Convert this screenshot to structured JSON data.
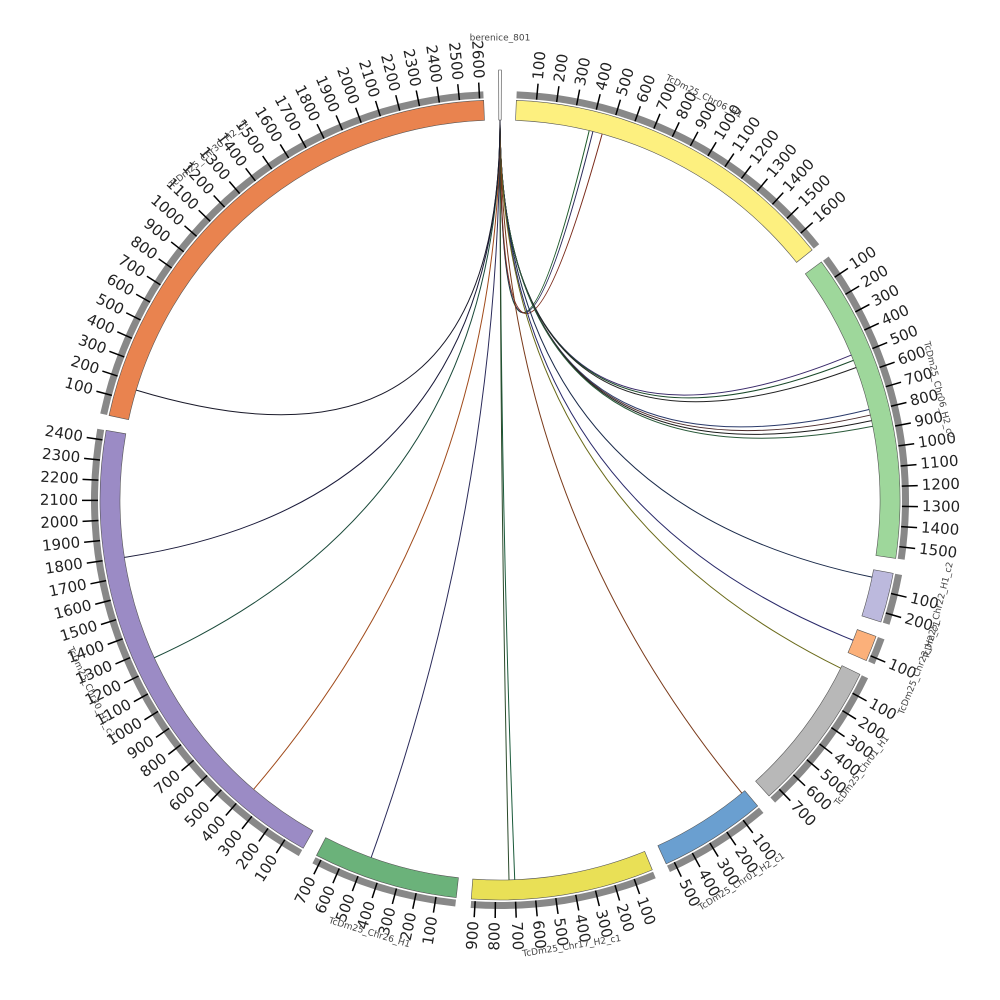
{
  "chart_data": {
    "type": "circos",
    "hub": {
      "name": "berenice_801"
    },
    "segments": [
      {
        "name": "TcDm25_Chr06_H1",
        "color": "#fdf07f",
        "length": 1700,
        "ticks": [
          100,
          200,
          300,
          400,
          500,
          600,
          700,
          800,
          900,
          1000,
          1100,
          1200,
          1300,
          1400,
          1500,
          1600
        ]
      },
      {
        "name": "TcDm25_Chr06_H2_c2",
        "color": "#9ed79b",
        "length": 1560,
        "ticks": [
          100,
          200,
          300,
          400,
          500,
          600,
          700,
          800,
          900,
          1000,
          1100,
          1200,
          1300,
          1400,
          1500
        ]
      },
      {
        "name": "TcDm25_Chr22_H1_c2",
        "color": "#bcb9dd",
        "length": 250,
        "ticks": [
          100,
          200
        ]
      },
      {
        "name": "TcDm25_Chr23_H2_c1",
        "color": "#fbb07a",
        "length": 130,
        "ticks": [
          100
        ]
      },
      {
        "name": "TcDm25_Chr01_H1",
        "color": "#b8b8b8",
        "length": 760,
        "ticks": [
          100,
          200,
          300,
          400,
          500,
          600,
          700
        ]
      },
      {
        "name": "TcDm25_Chr01_H2_c1",
        "color": "#6a9fd0",
        "length": 540,
        "ticks": [
          100,
          200,
          300,
          400,
          500
        ]
      },
      {
        "name": "TcDm25_Chr17_H2_c1",
        "color": "#e9e056",
        "length": 920,
        "ticks": [
          100,
          200,
          300,
          400,
          500,
          600,
          700,
          800,
          900
        ]
      },
      {
        "name": "TcDm25_Chr26_H1",
        "color": "#6bb27a",
        "length": 730,
        "ticks": [
          100,
          200,
          300,
          400,
          500,
          600,
          700
        ]
      },
      {
        "name": "TcDm25_Chr30_H1_c1",
        "color": "#9b8bc5",
        "length": 2450,
        "ticks": [
          100,
          200,
          300,
          400,
          500,
          600,
          700,
          800,
          900,
          1000,
          1100,
          1200,
          1300,
          1400,
          1500,
          1600,
          1700,
          1800,
          1900,
          2000,
          2100,
          2200,
          2300,
          2400
        ]
      },
      {
        "name": "TcDm25_Chr30_H2_c1",
        "color": "#e9834f",
        "length": 2620,
        "ticks": [
          100,
          200,
          300,
          400,
          500,
          600,
          700,
          800,
          900,
          1000,
          1100,
          1200,
          1300,
          1400,
          1500,
          1600,
          1700,
          1800,
          1900,
          2000,
          2100,
          2200,
          2300,
          2400,
          2500,
          2600
        ]
      }
    ],
    "links": [
      {
        "segment": 0,
        "position": 390,
        "color": "#1d5a2a"
      },
      {
        "segment": 0,
        "position": 410,
        "color": "#2a2a5a"
      },
      {
        "segment": 0,
        "position": 460,
        "color": "#7a2a1a"
      },
      {
        "segment": 1,
        "position": 490,
        "color": "#3a2a6a"
      },
      {
        "segment": 1,
        "position": 520,
        "color": "#1a4a2a"
      },
      {
        "segment": 1,
        "position": 560,
        "color": "#222222"
      },
      {
        "segment": 1,
        "position": 790,
        "color": "#2a3a6a"
      },
      {
        "segment": 1,
        "position": 820,
        "color": "#4a2a2a"
      },
      {
        "segment": 1,
        "position": 850,
        "color": "#1a1a1a"
      },
      {
        "segment": 1,
        "position": 880,
        "color": "#2a5a3a"
      },
      {
        "segment": 2,
        "position": 40,
        "color": "#1a2a4a"
      },
      {
        "segment": 3,
        "position": 60,
        "color": "#2a2a6a"
      },
      {
        "segment": 4,
        "position": 15,
        "color": "#6a6a1a"
      },
      {
        "segment": 5,
        "position": 20,
        "color": "#7a3a1a"
      },
      {
        "segment": 6,
        "position": 700,
        "color": "#1a5a3a"
      },
      {
        "segment": 6,
        "position": 730,
        "color": "#2a4a2a"
      },
      {
        "segment": 7,
        "position": 470,
        "color": "#2a2a5a"
      },
      {
        "segment": 8,
        "position": 380,
        "color": "#a04a1a"
      },
      {
        "segment": 8,
        "position": 1250,
        "color": "#1a4a3a"
      },
      {
        "segment": 8,
        "position": 1800,
        "color": "#1a1a3a"
      },
      {
        "segment": 9,
        "position": 160,
        "color": "#1a1a2a"
      }
    ]
  }
}
